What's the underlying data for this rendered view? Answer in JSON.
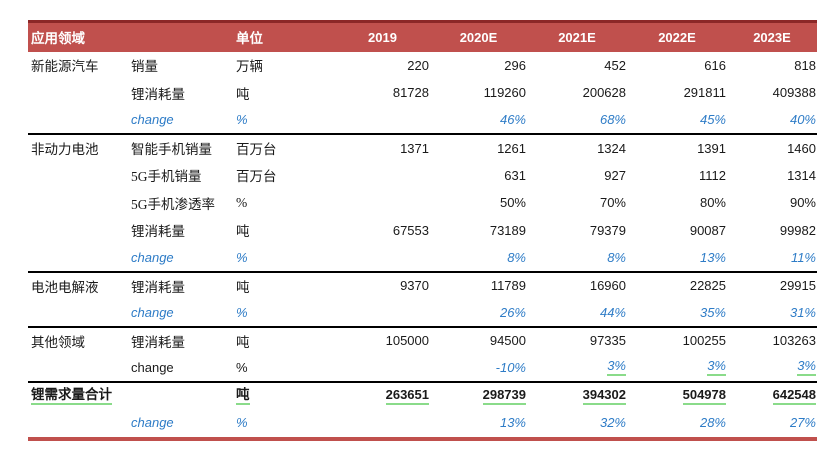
{
  "colors": {
    "header_bg": "#C0504D",
    "header_top_border": "#8B2727",
    "section_divider": "#000000",
    "change_blue": "#2E7CC7",
    "underline_green": "#8ADB8A",
    "bottom_line": "#C0504D",
    "header_text": "#FFFFFF",
    "body_text": "#1A1A1A"
  },
  "chart_data": {
    "type": "table",
    "title": "",
    "header": [
      "应用领域",
      "",
      "单位",
      "2019",
      "2020E",
      "2021E",
      "2022E",
      "2023E"
    ],
    "rows": [
      {
        "section": "新能源汽车",
        "label": "销量",
        "unit": "万辆",
        "style": "plain",
        "values": [
          "220",
          "296",
          "452",
          "616",
          "818"
        ]
      },
      {
        "section": "",
        "label": "锂消耗量",
        "unit": "吨",
        "style": "plain",
        "values": [
          "81728",
          "119260",
          "200628",
          "291811",
          "409388"
        ]
      },
      {
        "section": "",
        "label": "change",
        "unit": "%",
        "style": "change",
        "divider": true,
        "values": [
          "",
          "46%",
          "68%",
          "45%",
          "40%"
        ]
      },
      {
        "section": "非动力电池",
        "label": "智能手机销量",
        "unit": "百万台",
        "style": "plain",
        "values": [
          "1371",
          "1261",
          "1324",
          "1391",
          "1460"
        ]
      },
      {
        "section": "",
        "label": "5G手机销量",
        "unit": "百万台",
        "style": "plain",
        "values": [
          "",
          "631",
          "927",
          "1112",
          "1314"
        ]
      },
      {
        "section": "",
        "label": "5G手机渗透率",
        "unit": "%",
        "style": "plain",
        "values": [
          "",
          "50%",
          "70%",
          "80%",
          "90%"
        ]
      },
      {
        "section": "",
        "label": "锂消耗量",
        "unit": "吨",
        "style": "plain",
        "values": [
          "67553",
          "73189",
          "79379",
          "90087",
          "99982"
        ]
      },
      {
        "section": "",
        "label": "change",
        "unit": "%",
        "style": "change",
        "divider": true,
        "values": [
          "",
          "8%",
          "8%",
          "13%",
          "11%"
        ]
      },
      {
        "section": "电池电解液",
        "label": "锂消耗量",
        "unit": "吨",
        "style": "plain",
        "values": [
          "9370",
          "11789",
          "16960",
          "22825",
          "29915"
        ]
      },
      {
        "section": "",
        "label": "change",
        "unit": "%",
        "style": "change",
        "divider": true,
        "values": [
          "",
          "26%",
          "44%",
          "35%",
          "31%"
        ]
      },
      {
        "section": "其他领域",
        "label": "锂消耗量",
        "unit": "吨",
        "style": "plain",
        "values": [
          "105000",
          "94500",
          "97335",
          "100255",
          "103263"
        ]
      },
      {
        "section": "",
        "label": "change",
        "unit": "%",
        "style": "change-blacklabel",
        "divider": true,
        "values": [
          "",
          "-10%",
          "3%",
          "3%",
          "3%"
        ],
        "underline_values": [
          false,
          false,
          true,
          true,
          true
        ]
      },
      {
        "section": "",
        "label": "锂需求量合计",
        "unit": "吨",
        "style": "total",
        "values": [
          "263651",
          "298739",
          "394302",
          "504978",
          "642548"
        ],
        "underline_values": [
          true,
          true,
          true,
          true,
          true
        ]
      },
      {
        "section": "",
        "label": "change",
        "unit": "%",
        "style": "change",
        "values": [
          "",
          "13%",
          "32%",
          "28%",
          "27%"
        ]
      }
    ]
  }
}
